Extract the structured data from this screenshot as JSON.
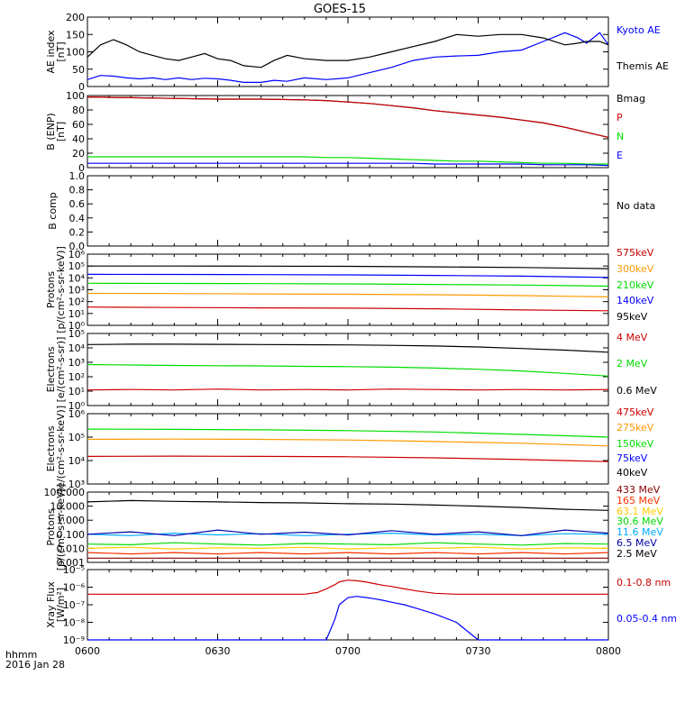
{
  "title": "GOES-15",
  "footer": {
    "line1": "hhmm",
    "line2": "2016 Jan 28"
  },
  "x_ticks": [
    "0600",
    "0630",
    "0700",
    "0730",
    "0800"
  ],
  "chart_data": [
    {
      "type": "line",
      "id": "ae",
      "ylabel": [
        "AE index",
        "[nT]"
      ],
      "yscale": "linear",
      "ylim": [
        0,
        200
      ],
      "yticks": [
        0,
        50,
        100,
        150,
        200
      ],
      "ytick_labels": [
        "0",
        "50",
        "100",
        "150",
        "200"
      ],
      "x_minutes": [
        0,
        3,
        6,
        9,
        12,
        15,
        18,
        21,
        24,
        27,
        30,
        33,
        36,
        40,
        43,
        46,
        50,
        55,
        60,
        65,
        70,
        75,
        80,
        85,
        90,
        95,
        100,
        105,
        110,
        113,
        115,
        118,
        120
      ],
      "series": [
        {
          "name": "Kyoto AE",
          "color": "#0000ff",
          "values": [
            20,
            32,
            30,
            25,
            22,
            25,
            20,
            25,
            20,
            24,
            22,
            18,
            12,
            12,
            18,
            15,
            25,
            20,
            25,
            40,
            55,
            75,
            85,
            88,
            90,
            100,
            105,
            130,
            155,
            140,
            125,
            155,
            120
          ]
        },
        {
          "name": "Themis AE",
          "color": "#000000",
          "values": [
            85,
            120,
            135,
            120,
            100,
            90,
            80,
            75,
            85,
            95,
            80,
            75,
            60,
            55,
            75,
            90,
            80,
            75,
            75,
            85,
            100,
            115,
            130,
            150,
            145,
            150,
            150,
            140,
            120,
            125,
            130,
            130,
            120
          ]
        }
      ]
    },
    {
      "type": "line",
      "id": "b_enp",
      "ylabel": [
        "B (ENP)",
        "[nT]"
      ],
      "yscale": "linear",
      "ylim": [
        0,
        100
      ],
      "yticks": [
        0,
        20,
        40,
        60,
        80,
        100
      ],
      "ytick_labels": [
        "0",
        "20",
        "40",
        "60",
        "80",
        "100"
      ],
      "x_minutes": [
        0,
        10,
        20,
        30,
        40,
        50,
        55,
        60,
        65,
        70,
        75,
        80,
        85,
        90,
        95,
        100,
        105,
        110,
        115,
        120
      ],
      "series": [
        {
          "name": "Bmag",
          "color": "#000000",
          "values": [
            98,
            97,
            96,
            95,
            95,
            94,
            93,
            91,
            89,
            86,
            83,
            79,
            76,
            73,
            70,
            66,
            62,
            56,
            49,
            42
          ]
        },
        {
          "name": "P",
          "color": "#cc0000",
          "values": [
            98,
            97,
            96,
            95,
            95,
            94,
            93,
            91,
            89,
            86,
            83,
            79,
            76,
            73,
            70,
            66,
            62,
            56,
            49,
            42
          ]
        },
        {
          "name": "N",
          "color": "#00dd00",
          "values": [
            15,
            15,
            15,
            15,
            15,
            15,
            14,
            14,
            13,
            12,
            11,
            10,
            9,
            9,
            8,
            7,
            6,
            6,
            5,
            5
          ]
        },
        {
          "name": "E",
          "color": "#0000ff",
          "values": [
            6,
            6,
            6,
            6,
            6,
            6,
            6,
            6,
            6,
            6,
            6,
            5,
            5,
            5,
            5,
            5,
            4,
            4,
            4,
            3
          ]
        }
      ]
    },
    {
      "type": "line",
      "id": "b_comp",
      "ylabel": [
        "B comp"
      ],
      "yscale": "linear",
      "ylim": [
        0,
        1
      ],
      "yticks": [
        0,
        0.2,
        0.4,
        0.6,
        0.8,
        1.0
      ],
      "ytick_labels": [
        "0.0",
        "0.2",
        "0.4",
        "0.6",
        "0.8",
        "1.0"
      ],
      "x_minutes": [],
      "series": [],
      "annotation": "No data"
    },
    {
      "type": "line",
      "id": "protons_mev",
      "ylabel": [
        "Protons",
        "[p/(cm²-s-sr-keV)]"
      ],
      "yscale": "log",
      "ylim": [
        1,
        1000000
      ],
      "yticks": [
        1,
        10,
        100,
        1000,
        10000,
        100000,
        1000000
      ],
      "x_minutes": [
        0,
        20,
        40,
        60,
        80,
        100,
        120
      ],
      "series": [
        {
          "name": "575keV",
          "color": "#cc0000",
          "values": [
            35,
            32,
            30,
            28,
            25,
            20,
            17
          ]
        },
        {
          "name": "300keV",
          "color": "#ff9900",
          "values": [
            500,
            480,
            450,
            420,
            380,
            320,
            250
          ]
        },
        {
          "name": "210keV",
          "color": "#00dd00",
          "values": [
            3500,
            3400,
            3300,
            3100,
            2800,
            2500,
            2000
          ]
        },
        {
          "name": "140keV",
          "color": "#0000ff",
          "values": [
            20000,
            19500,
            19000,
            18000,
            16000,
            14000,
            11000
          ]
        },
        {
          "name": "95keV",
          "color": "#000000",
          "values": [
            100000,
            100000,
            98000,
            95000,
            85000,
            75000,
            60000
          ]
        }
      ]
    },
    {
      "type": "line",
      "id": "electrons_mev",
      "ylabel": [
        "Electrons",
        "[e/(cm²-s-sr)]"
      ],
      "yscale": "log",
      "ylim": [
        1,
        100000
      ],
      "yticks": [
        1,
        10,
        100,
        1000,
        10000,
        100000
      ],
      "x_minutes": [
        0,
        10,
        20,
        30,
        40,
        50,
        60,
        70,
        80,
        90,
        100,
        110,
        120
      ],
      "series": [
        {
          "name": "4 MeV",
          "color": "#cc0000",
          "values": [
            12,
            13,
            12,
            14,
            12,
            13,
            12,
            14,
            13,
            12,
            13,
            12,
            13
          ]
        },
        {
          "name": "2 MeV",
          "color": "#00dd00",
          "values": [
            700,
            650,
            600,
            580,
            560,
            520,
            500,
            460,
            400,
            330,
            250,
            170,
            110
          ]
        },
        {
          "name": "0.6 MeV",
          "color": "#000000",
          "values": [
            17000,
            18000,
            18000,
            17500,
            17000,
            16500,
            16000,
            15000,
            13500,
            11500,
            9000,
            7000,
            5000
          ]
        }
      ]
    },
    {
      "type": "line",
      "id": "electrons_kev",
      "ylabel": [
        "Electrons",
        "[e/(cm²-s-sr-keV)]"
      ],
      "yscale": "log",
      "ylim": [
        1000,
        1000000
      ],
      "yticks": [
        1000,
        10000,
        100000,
        1000000
      ],
      "x_minutes": [
        0,
        20,
        40,
        60,
        80,
        100,
        120
      ],
      "series": [
        {
          "name": "475keV",
          "color": "#cc0000",
          "values": [
            15000,
            15500,
            15000,
            14500,
            13000,
            11000,
            9000
          ]
        },
        {
          "name": "275keV",
          "color": "#ff9900",
          "values": [
            80000,
            82000,
            80000,
            75000,
            65000,
            55000,
            42000
          ]
        },
        {
          "name": "150keV",
          "color": "#00dd00",
          "values": [
            220000,
            215000,
            205000,
            190000,
            165000,
            130000,
            100000
          ]
        },
        {
          "name": "75keV",
          "color": "#0000ff",
          "values": []
        },
        {
          "name": "40keV",
          "color": "#000000",
          "values": []
        }
      ]
    },
    {
      "type": "line",
      "id": "protons_kev",
      "ylabel": [
        "Protons",
        "[p/(cm²-s-sr-keV)]"
      ],
      "yscale": "log",
      "ylim": [
        0.001,
        100
      ],
      "yticks": [
        0.001,
        0.01,
        0.1,
        1,
        10,
        100
      ],
      "ytick_labels": [
        "0.001",
        "0.010",
        "0.100",
        "1.000",
        "10.000",
        "100.000"
      ],
      "x_minutes": [
        0,
        10,
        20,
        30,
        40,
        50,
        60,
        70,
        80,
        90,
        100,
        110,
        120
      ],
      "series": [
        {
          "name": "433 MeV",
          "color": "#8b0000",
          "values": [
            0.002,
            0.002,
            0.002,
            0.002,
            0.002,
            0.002,
            0.002,
            0.002,
            0.002,
            0.002,
            0.002,
            0.002,
            0.002
          ]
        },
        {
          "name": "165 MeV",
          "color": "#ff3300",
          "values": [
            0.005,
            0.004,
            0.005,
            0.004,
            0.005,
            0.004,
            0.005,
            0.004,
            0.005,
            0.004,
            0.005,
            0.004,
            0.005
          ]
        },
        {
          "name": "63.1 MeV",
          "color": "#ffcc00",
          "values": [
            0.01,
            0.012,
            0.009,
            0.011,
            0.01,
            0.012,
            0.009,
            0.011,
            0.01,
            0.012,
            0.009,
            0.011,
            0.01
          ]
        },
        {
          "name": "30.6 MeV",
          "color": "#00dd00",
          "values": [
            0.02,
            0.018,
            0.025,
            0.02,
            0.017,
            0.022,
            0.02,
            0.018,
            0.025,
            0.02,
            0.017,
            0.022,
            0.02
          ]
        },
        {
          "name": "11.6 MeV",
          "color": "#00aaff",
          "values": [
            0.1,
            0.08,
            0.12,
            0.09,
            0.11,
            0.08,
            0.1,
            0.12,
            0.09,
            0.1,
            0.08,
            0.11,
            0.1
          ]
        },
        {
          "name": "6.5 MeV",
          "color": "#0000aa",
          "values": [
            0.1,
            0.15,
            0.08,
            0.2,
            0.1,
            0.14,
            0.09,
            0.18,
            0.1,
            0.15,
            0.08,
            0.2,
            0.12
          ]
        },
        {
          "name": "2.5 MeV",
          "color": "#000000",
          "values": [
            20,
            25,
            22,
            20,
            18,
            17,
            15,
            14,
            12,
            10,
            8,
            6,
            5
          ]
        }
      ]
    },
    {
      "type": "line",
      "id": "xray",
      "ylabel": [
        "Xray Flux",
        "[W/m²]"
      ],
      "yscale": "log",
      "ylim": [
        1e-09,
        1e-05
      ],
      "yticks": [
        1e-09,
        1e-08,
        1e-07,
        1e-06,
        1e-05
      ],
      "x_minutes": [
        0,
        20,
        40,
        50,
        53,
        55,
        57,
        58,
        60,
        62,
        64,
        66,
        68,
        70,
        73,
        76,
        80,
        85,
        90,
        100,
        110,
        120
      ],
      "series": [
        {
          "name": "0.1-0.8 nm",
          "color": "#cc0000",
          "values": [
            4e-07,
            4e-07,
            4e-07,
            4e-07,
            5e-07,
            8e-07,
            1.4e-06,
            2e-06,
            2.5e-06,
            2.3e-06,
            2e-06,
            1.6e-06,
            1.3e-06,
            1.1e-06,
            8e-07,
            6e-07,
            4.5e-07,
            4e-07,
            4e-07,
            4e-07,
            4e-07,
            4e-07
          ]
        },
        {
          "name": "0.05-0.4 nm",
          "color": "#0000ff",
          "values": [
            1e-09,
            1e-09,
            1e-09,
            1e-09,
            1e-09,
            1e-09,
            1.5e-08,
            1e-07,
            2.5e-07,
            3e-07,
            2.6e-07,
            2.2e-07,
            1.8e-07,
            1.4e-07,
            1e-07,
            6e-08,
            3e-08,
            1e-08,
            1e-09,
            1e-09,
            1e-09,
            1e-09
          ]
        }
      ]
    }
  ]
}
